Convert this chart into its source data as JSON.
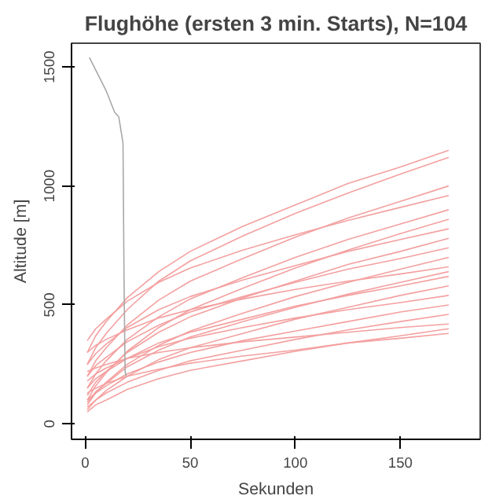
{
  "chart_data": {
    "type": "line",
    "title": "Flughöhe (ersten 3 min. Starts), N=104",
    "xlabel": "Sekunden",
    "ylabel": "Altitude [m]",
    "x": [
      1,
      5,
      10,
      20,
      35,
      50,
      75,
      100,
      125,
      150,
      173
    ],
    "xlim": [
      -6.5,
      188
    ],
    "ylim": [
      -65,
      1600
    ],
    "xticks": [
      0,
      50,
      100,
      150
    ],
    "yticks": [
      0,
      500,
      1000,
      1500
    ],
    "grid": false,
    "marker": "none",
    "line_style": "solid",
    "series": [
      {
        "color": "#f4a0a0",
        "values": [
          300,
          370,
          430,
          530,
          640,
          725,
          830,
          920,
          1010,
          1080,
          1150
        ]
      },
      {
        "color": "#f4a0a0",
        "values": [
          250,
          320,
          380,
          480,
          600,
          685,
          790,
          885,
          970,
          1050,
          1120
        ]
      },
      {
        "color": "#f4a0a0",
        "values": [
          200,
          265,
          320,
          415,
          520,
          600,
          695,
          785,
          865,
          935,
          1000
        ]
      },
      {
        "color": "#f4a0a0",
        "values": [
          350,
          400,
          440,
          515,
          595,
          655,
          730,
          795,
          855,
          910,
          960
        ]
      },
      {
        "color": "#f4a0a0",
        "values": [
          150,
          210,
          265,
          355,
          450,
          525,
          615,
          700,
          775,
          840,
          900
        ]
      },
      {
        "color": "#f4a0a0",
        "values": [
          100,
          160,
          215,
          305,
          405,
          480,
          570,
          655,
          730,
          800,
          860
        ]
      },
      {
        "color": "#f4a0a0",
        "values": [
          250,
          295,
          335,
          405,
          480,
          535,
          605,
          665,
          725,
          775,
          820
        ]
      },
      {
        "color": "#f4a0a0",
        "values": [
          120,
          175,
          220,
          300,
          385,
          450,
          530,
          600,
          670,
          725,
          780
        ]
      },
      {
        "color": "#f4a0a0",
        "values": [
          200,
          245,
          280,
          345,
          415,
          470,
          535,
          595,
          650,
          695,
          740
        ]
      },
      {
        "color": "#f4a0a0",
        "values": [
          80,
          130,
          175,
          250,
          330,
          390,
          465,
          535,
          595,
          650,
          700
        ]
      },
      {
        "color": "#f4a0a0",
        "values": [
          300,
          330,
          355,
          395,
          445,
          480,
          525,
          565,
          600,
          630,
          660
        ]
      },
      {
        "color": "#f4a0a0",
        "values": [
          150,
          190,
          220,
          275,
          340,
          385,
          440,
          495,
          540,
          580,
          620
        ]
      },
      {
        "color": "#f4a0a0",
        "values": [
          60,
          100,
          140,
          200,
          270,
          320,
          380,
          440,
          490,
          540,
          580
        ]
      },
      {
        "color": "#f4a0a0",
        "values": [
          180,
          210,
          235,
          275,
          325,
          360,
          405,
          445,
          480,
          510,
          540
        ]
      },
      {
        "color": "#f4a0a0",
        "values": [
          100,
          130,
          160,
          210,
          260,
          300,
          350,
          390,
          430,
          470,
          500
        ]
      },
      {
        "color": "#f4a0a0",
        "values": [
          70,
          100,
          130,
          175,
          225,
          265,
          310,
          355,
          395,
          430,
          460
        ]
      },
      {
        "color": "#f4a0a0",
        "values": [
          220,
          235,
          250,
          275,
          300,
          320,
          345,
          365,
          385,
          405,
          420
        ]
      },
      {
        "color": "#f4a0a0",
        "values": [
          50,
          80,
          100,
          145,
          190,
          225,
          265,
          305,
          340,
          370,
          400
        ]
      },
      {
        "color": "#f4a0a0",
        "values": [
          130,
          150,
          170,
          200,
          230,
          255,
          285,
          310,
          340,
          360,
          380
        ]
      },
      {
        "color": "#f4a0a0",
        "values": [
          90,
          135,
          170,
          240,
          310,
          365,
          430,
          490,
          545,
          595,
          640
        ]
      },
      {
        "color": "#a8a8a8",
        "x": [
          2,
          6,
          10,
          14,
          16,
          18,
          18.5,
          19,
          19.5
        ],
        "values": [
          1540,
          1470,
          1400,
          1310,
          1290,
          1180,
          600,
          220,
          200
        ]
      }
    ]
  }
}
